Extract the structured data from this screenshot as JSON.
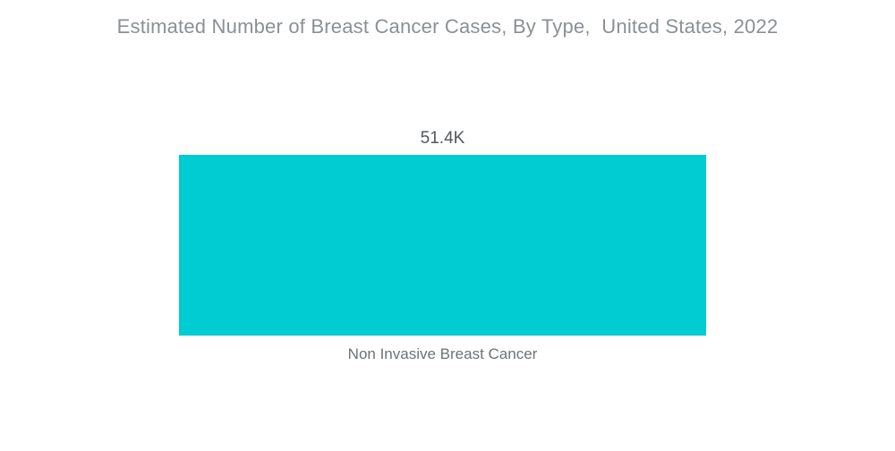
{
  "chart_data": {
    "type": "bar",
    "title": "Estimated Number of Breast Cancer Cases, By Type,  United States, 2022",
    "categories": [
      "Non Invasive Breast Cancer"
    ],
    "values": [
      51400
    ],
    "value_labels": [
      "51.4K"
    ],
    "xlabel": "",
    "ylabel": "",
    "ylim": [
      0,
      51400
    ],
    "grid": false,
    "legend": false,
    "orientation": "vertical",
    "bar_color": "#00ccd1",
    "background_color": "#ffffff",
    "title_color": "#8b9094",
    "value_label_color": "#53585c",
    "category_label_color": "#6d7276"
  }
}
